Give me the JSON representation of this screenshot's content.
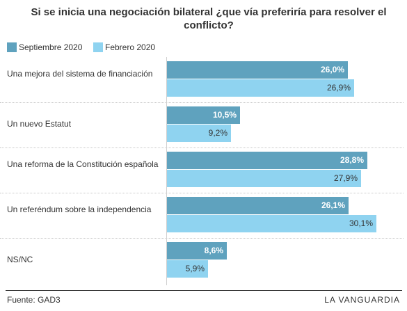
{
  "chart_data": {
    "type": "bar",
    "orientation": "horizontal",
    "title": "Si se inicia una negociación bilateral ¿que vía preferiría para resolver el conflicto?",
    "categories": [
      "Una mejora del sistema de financiación",
      "Un nuevo Estatut",
      "Una reforma de la Constitución española",
      "Un referéndum sobre la independencia",
      "NS/NC"
    ],
    "series": [
      {
        "name": "Septiembre 2020",
        "values": [
          26.0,
          10.5,
          28.8,
          26.1,
          8.6
        ],
        "labels": [
          "26,0%",
          "10,5%",
          "28,8%",
          "26,1%",
          "8,6%"
        ]
      },
      {
        "name": "Febrero 2020",
        "values": [
          26.9,
          9.2,
          27.9,
          30.1,
          5.9
        ],
        "labels": [
          "26,9%",
          "9,2%",
          "27,9%",
          "30,1%",
          "5,9%"
        ]
      }
    ],
    "colors": [
      "#5fa2be",
      "#8fd3f0"
    ],
    "xlim": [
      0,
      30.1
    ],
    "legend": "top-left",
    "grid": false
  },
  "footer": {
    "source": "Fuente: GAD3",
    "brand": "LA VANGUARDIA"
  }
}
